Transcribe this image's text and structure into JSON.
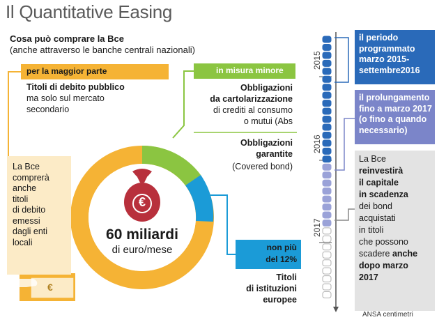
{
  "header": {
    "title": "Il Quantitative Easing",
    "subtitle_bold": "Cosa può comprare la Bce",
    "subtitle": "(anche attraverso le banche centrali nazionali)"
  },
  "categories": {
    "public_debt": {
      "bar_label": "per la maggior parte",
      "title": "Titoli di debito pubblico",
      "lines": [
        "ma solo sul mercato",
        "secondario"
      ]
    },
    "minor": {
      "bar_label": "in misura minore",
      "abs_title_lines": [
        "Obbligazioni",
        "da cartolarizzazione"
      ],
      "abs_lines": [
        "di crediti al consumo",
        "o mutui (Abs"
      ],
      "covered_title_lines": [
        "Obbligazioni",
        "garantite"
      ],
      "covered_line": "(Covered bond)"
    },
    "local": {
      "lines": [
        "La Bce",
        "comprerà",
        "anche",
        "titoli",
        "di debito",
        "emessi",
        "dagli enti",
        "locali"
      ]
    },
    "european": {
      "bar_lines": [
        "non più",
        "del 12%"
      ],
      "title_lines": [
        "Titoli",
        "di istituzioni",
        "europee"
      ]
    }
  },
  "center": {
    "amount": "60 miliardi",
    "unit": "di euro/mese",
    "currency_symbol": "€"
  },
  "money_icon_symbol": "€",
  "timeline": {
    "years": [
      "2015",
      "2016",
      "2017"
    ],
    "dots": {
      "dark": 16,
      "light": 8,
      "hollow": 9
    },
    "boxes": [
      {
        "lines": [
          "il periodo",
          "programmato",
          "marzo 2015-",
          "settembre2016"
        ]
      },
      {
        "lines": [
          "il prolungamento",
          "fino a marzo 2017",
          "(o fino a quando",
          "necessario)"
        ]
      }
    ],
    "reinvest": {
      "segments": [
        {
          "text": "La Bce",
          "bold": false
        },
        {
          "text": "reinvestirà",
          "bold": true
        },
        {
          "text": "il capitale",
          "bold": true
        },
        {
          "text": "in scadenza",
          "bold": true
        },
        {
          "text": "dei bond",
          "bold": false
        },
        {
          "text": "acquistati",
          "bold": false
        },
        {
          "text": "in titoli",
          "bold": false
        },
        {
          "text": "che possono",
          "bold": false
        },
        {
          "text": "scadere",
          "bold": false,
          "tail": " anche",
          "tail_bold": true
        },
        {
          "text": "dopo marzo",
          "bold": true
        },
        {
          "text": "2017",
          "bold": true
        }
      ]
    }
  },
  "credit": "ANSA centimetri",
  "colors": {
    "orange": "#f5b335",
    "light_orange": "#fcebc7",
    "green": "#8bc541",
    "blue": "#1b9bd7",
    "dark_blue": "#2a6ab9",
    "violet": "#7b85c9",
    "bag": "#b8303c",
    "grey": "#e3e3e3"
  }
}
